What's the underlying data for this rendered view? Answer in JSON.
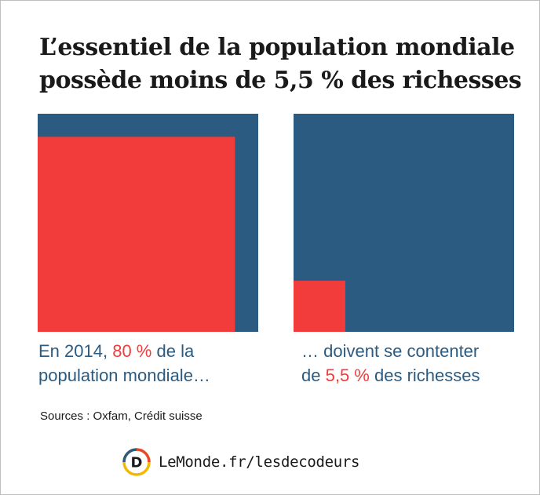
{
  "title": {
    "line1": "L’essentiel de la population mondiale",
    "line2": "possède moins de 5,5 % des richesses"
  },
  "colors": {
    "blue": "#2b5b80",
    "red": "#f23b3b",
    "text": "#1a1a1a"
  },
  "chart_data": [
    {
      "type": "area",
      "label": "population",
      "total": 100,
      "highlight": 80,
      "unit": "%",
      "caption": {
        "prefix": "En 2014,",
        "value_text": "80 %",
        "suffix": "de la",
        "line2": "population mondiale…"
      }
    },
    {
      "type": "area",
      "label": "richesses",
      "total": 100,
      "highlight": 5.5,
      "unit": "%",
      "caption": {
        "line1": "… doivent se contenter",
        "prefix": "de",
        "value_text": "5,5 %",
        "suffix": "des richesses"
      }
    }
  ],
  "sources": "Sources : Oxfam, Crédit suisse",
  "brand": {
    "logo_letter": "D",
    "text": "LeMonde.fr/lesdecodeurs"
  }
}
